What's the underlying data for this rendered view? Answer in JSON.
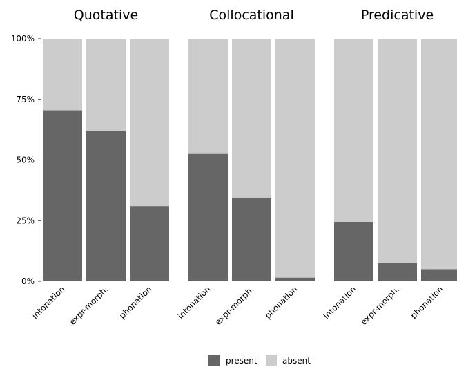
{
  "chart_data": {
    "type": "bar",
    "stacked": true,
    "ylim": [
      0,
      100
    ],
    "yticks": [
      {
        "value": 0,
        "label": "0%"
      },
      {
        "value": 25,
        "label": "25%"
      },
      {
        "value": 50,
        "label": "50%"
      },
      {
        "value": 75,
        "label": "75%"
      },
      {
        "value": 100,
        "label": "100%"
      }
    ],
    "categories": [
      "intonation",
      "expr-morph.",
      "phonation"
    ],
    "facets": [
      {
        "title": "Quotative",
        "present": [
          70.5,
          62,
          31
        ],
        "absent": [
          29.5,
          38,
          69
        ]
      },
      {
        "title": "Collocational",
        "present": [
          52.5,
          34.5,
          1.5
        ],
        "absent": [
          47.5,
          65.5,
          98.5
        ]
      },
      {
        "title": "Predicative",
        "present": [
          24.5,
          7.5,
          5
        ],
        "absent": [
          75.5,
          92.5,
          95
        ]
      }
    ],
    "legend": {
      "position": "bottom",
      "items": [
        {
          "label": "present",
          "color": "#666666"
        },
        {
          "label": "absent",
          "color": "#cccccc"
        }
      ]
    },
    "colors": {
      "present": "#666666",
      "absent": "#cccccc"
    },
    "grid": false
  }
}
